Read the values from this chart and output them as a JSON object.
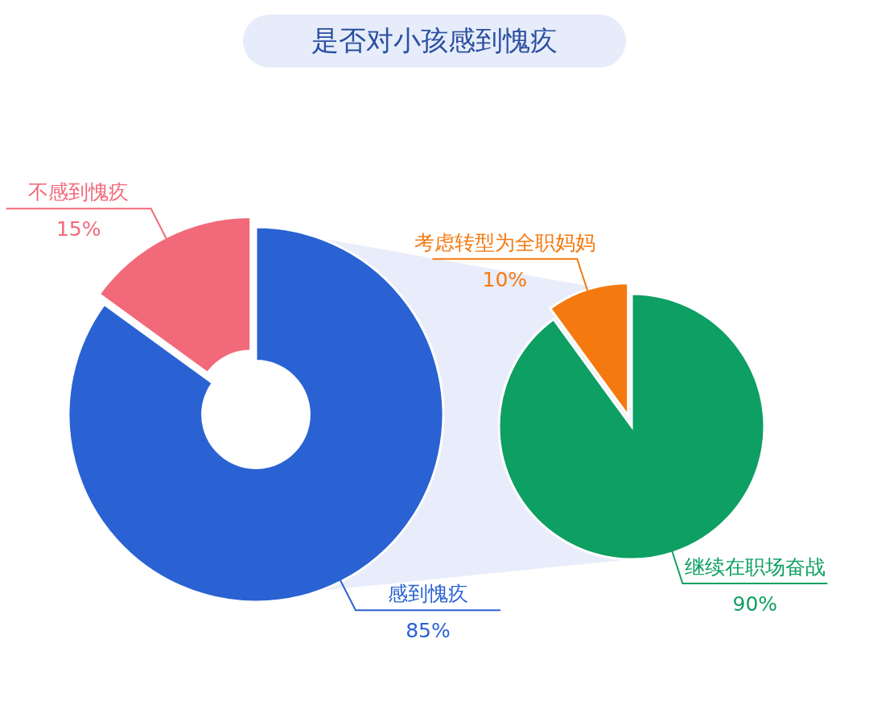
{
  "chart_data": [
    {
      "type": "donut",
      "title": "是否对小孩感到愧疚",
      "categories": [
        "感到愧疚",
        "不感到愧疚"
      ],
      "values": [
        85,
        15
      ],
      "colors": [
        "#2a62d3",
        "#f2697a"
      ],
      "value_labels": [
        "85%",
        "15%"
      ]
    },
    {
      "type": "pie",
      "categories": [
        "继续在职场奋战",
        "考虑转型为全职妈妈"
      ],
      "values": [
        90,
        10
      ],
      "colors": [
        "#0e9f63",
        "#f47a10"
      ],
      "value_labels": [
        "90%",
        "10%"
      ]
    }
  ]
}
